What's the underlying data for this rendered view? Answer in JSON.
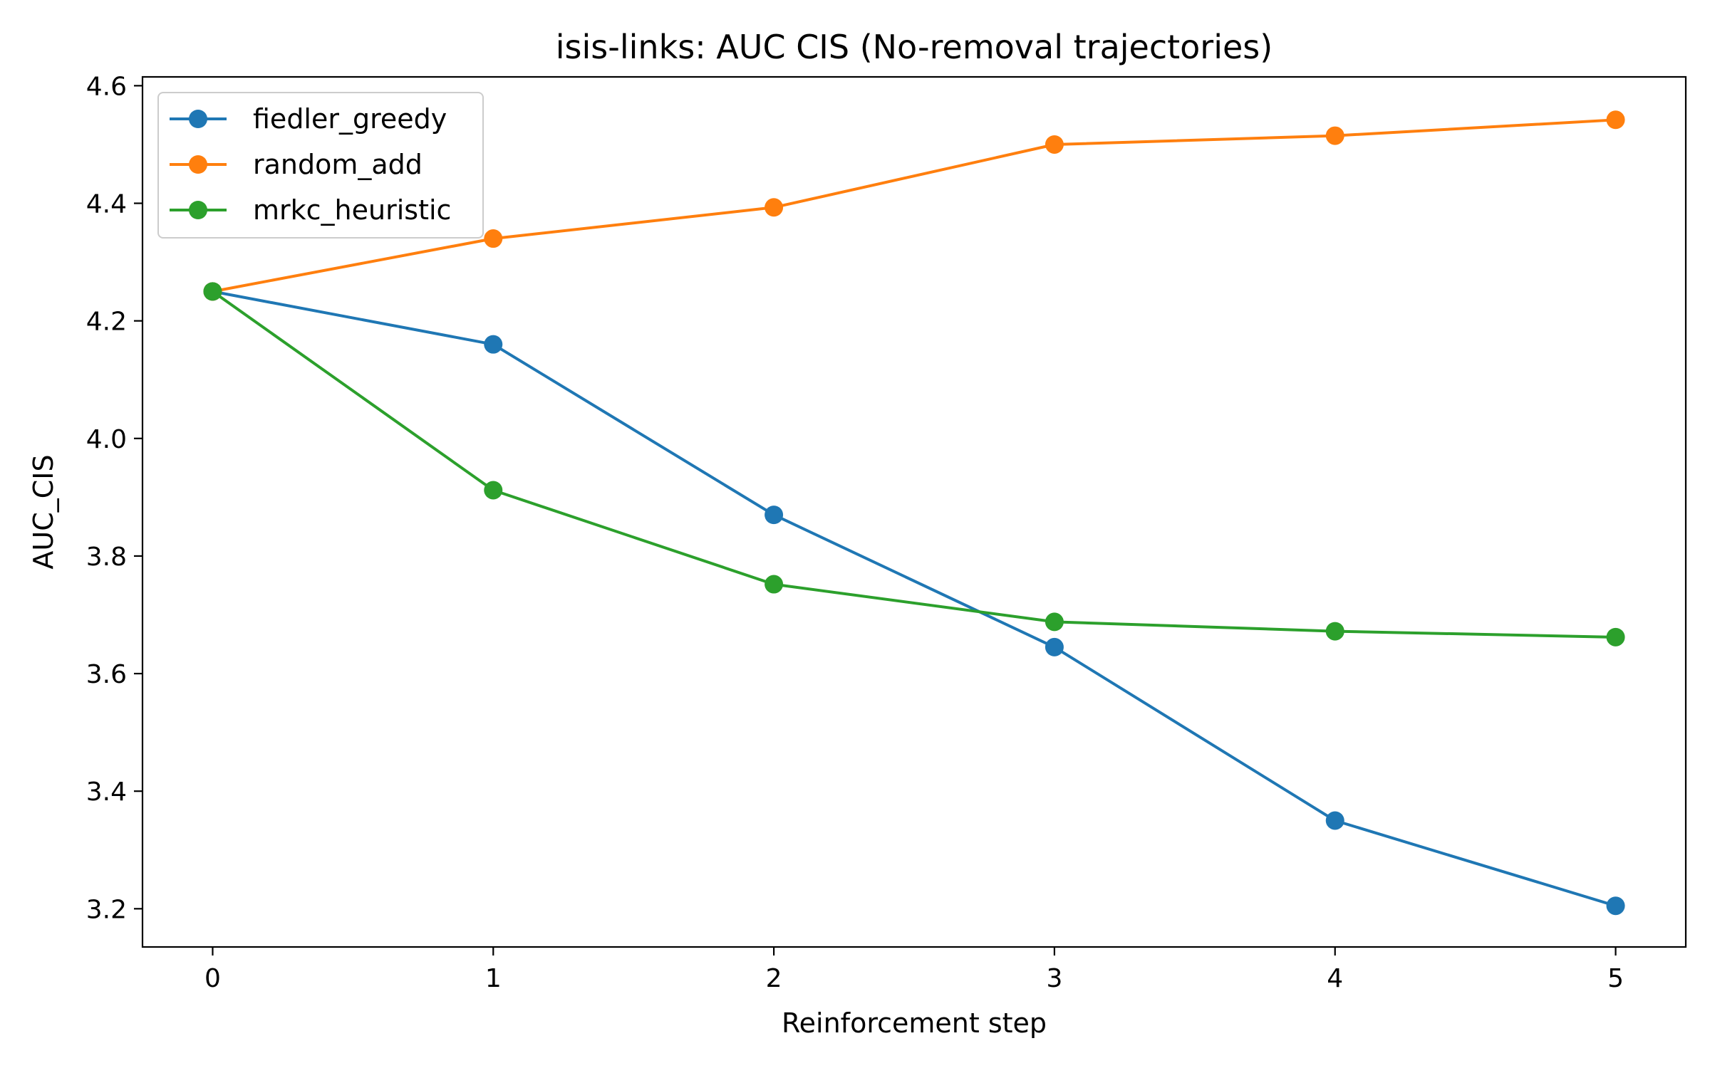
{
  "chart_data": {
    "type": "line",
    "title": "isis-links: AUC CIS (No-removal trajectories)",
    "xlabel": "Reinforcement step",
    "ylabel": "AUC_CIS",
    "x": [
      0,
      1,
      2,
      3,
      4,
      5
    ],
    "x_ticks": [
      "0",
      "1",
      "2",
      "3",
      "4",
      "5"
    ],
    "y_ticks": [
      "3.2",
      "3.4",
      "3.6",
      "3.8",
      "4.0",
      "4.2",
      "4.4",
      "4.6"
    ],
    "xlim": [
      -0.25,
      5.25
    ],
    "ylim": [
      3.135,
      4.615
    ],
    "grid": false,
    "legend_position": "top-left",
    "marker": "circle",
    "series": [
      {
        "name": "fiedler_greedy",
        "color": "#1f77b4",
        "values": [
          4.25,
          4.16,
          3.87,
          3.645,
          3.35,
          3.205
        ]
      },
      {
        "name": "random_add",
        "color": "#ff7f0e",
        "values": [
          4.25,
          4.34,
          4.393,
          4.5,
          4.515,
          4.542
        ]
      },
      {
        "name": "mrkc_heuristic",
        "color": "#2ca02c",
        "values": [
          4.25,
          3.912,
          3.752,
          3.688,
          3.672,
          3.662
        ]
      }
    ]
  }
}
